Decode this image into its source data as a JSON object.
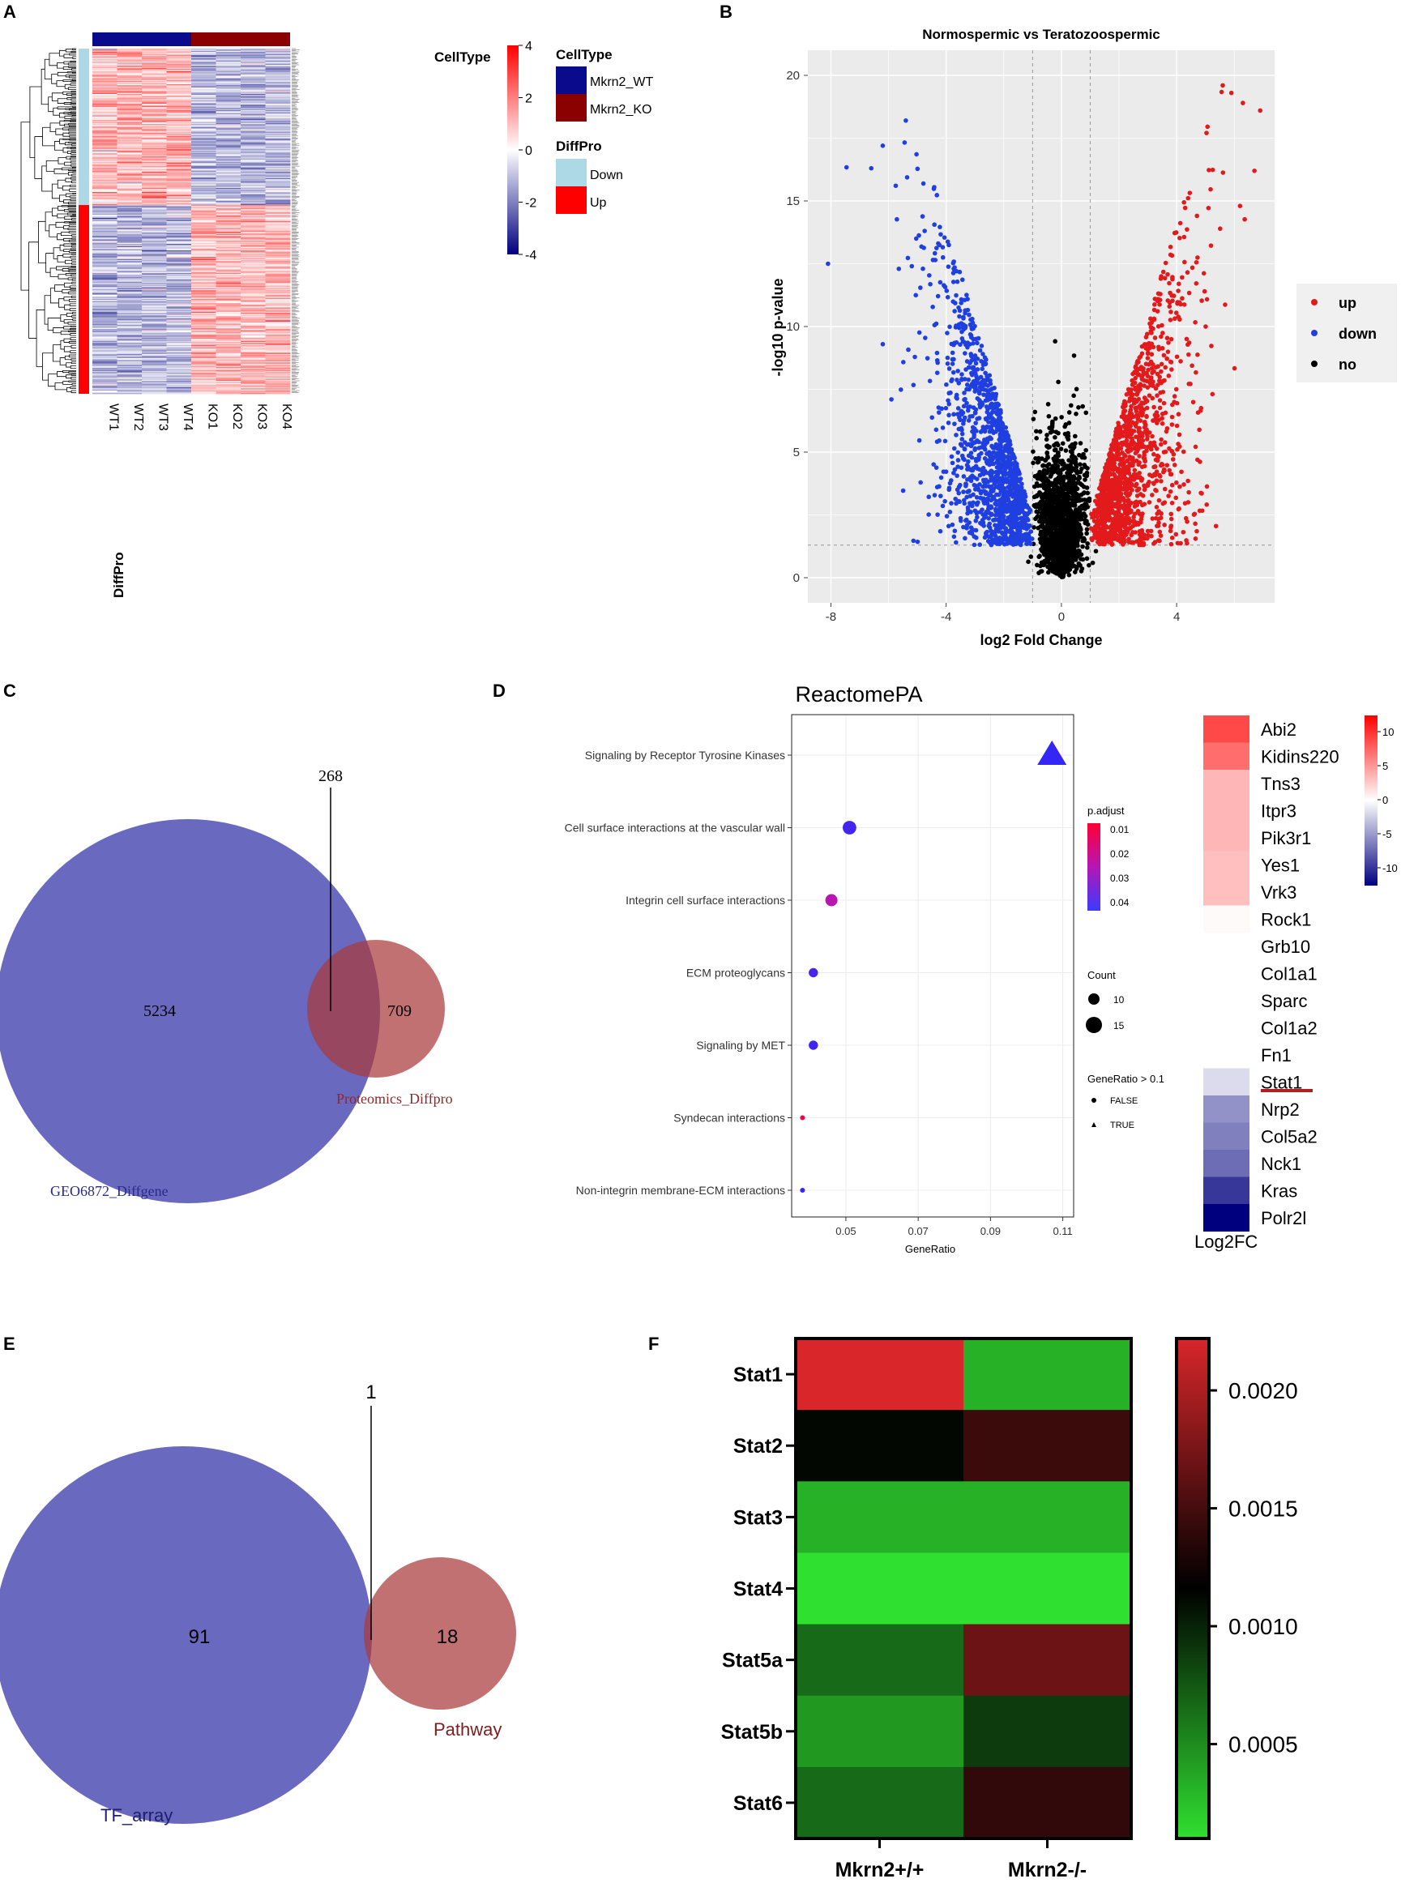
{
  "panel_labels": {
    "a": "A",
    "b": "B",
    "c": "C",
    "d": "D",
    "e": "E",
    "f": "F"
  },
  "colors": {
    "wt": "#0a0a8c",
    "ko": "#8b0000",
    "down": "#add8e6",
    "up": "#ff0000",
    "volcano_up": "#e31a1c",
    "volcano_down": "#1f3fe0",
    "volcano_no": "#000000",
    "venn_blue": "#4f4fb4",
    "venn_red": "#b54a4a"
  },
  "chart_data": [
    {
      "panel": "A",
      "type": "heatmap",
      "columns": [
        "WT1",
        "WT2",
        "WT3",
        "WT4",
        "KO1",
        "KO2",
        "KO3",
        "KO4"
      ],
      "annotation_title": "CellType",
      "row_annotation_label": "DiffPro",
      "scale": {
        "min": -4,
        "max": 4,
        "ticks": [
          "4",
          "2",
          "0",
          "-2",
          "-4"
        ]
      },
      "legend": {
        "celltype_title": "CellType",
        "celltype": [
          {
            "label": "Mkrn2_WT",
            "color": "#0a0a8c"
          },
          {
            "label": "Mkrn2_KO",
            "color": "#8b0000"
          }
        ],
        "diffpro_title": "DiffPro",
        "diffpro": [
          {
            "label": "Down",
            "color": "#add8e6"
          },
          {
            "label": "Up",
            "color": "#ff0000"
          }
        ]
      },
      "groups": [
        {
          "name": "Down",
          "rows": 145
        },
        {
          "name": "Up",
          "rows": 175
        }
      ]
    },
    {
      "panel": "B",
      "type": "scatter",
      "title": "Normospermic vs Teratozoospermic",
      "xlabel": "log2 Fold Change",
      "ylabel": "-log10 p-value",
      "xlim": [
        -8.8,
        7.4
      ],
      "ylim": [
        -1,
        21
      ],
      "xticks": [
        "-8",
        "-4",
        "0",
        "4"
      ],
      "yticks": [
        "0",
        "5",
        "10",
        "15",
        "20"
      ],
      "fc_threshold": 1,
      "p_threshold": 1.3,
      "legend": [
        {
          "label": "up",
          "color": "#e31a1c"
        },
        {
          "label": "down",
          "color": "#1f3fe0"
        },
        {
          "label": "no",
          "color": "#000000"
        }
      ]
    },
    {
      "panel": "C",
      "type": "venn",
      "sets": [
        {
          "name": "GEO6872_Diffgene",
          "only": "5234"
        },
        {
          "name": "Proteomics_Diffpro",
          "only": "709"
        }
      ],
      "intersection": "268"
    },
    {
      "panel": "D",
      "type": "dot",
      "title": "ReactomePA",
      "xlabel": "GeneRatio",
      "xticks": [
        "0.05",
        "0.07",
        "0.09",
        "0.11"
      ],
      "xlim": [
        0.035,
        0.113
      ],
      "terms": [
        {
          "term": "Signaling by Receptor Tyrosine Kinases",
          "gene_ratio": 0.107,
          "p_adjust": 0.045,
          "count": 20,
          "gt01": true
        },
        {
          "term": "Cell surface interactions at the vascular wall",
          "gene_ratio": 0.051,
          "p_adjust": 0.043,
          "count": 14,
          "gt01": false
        },
        {
          "term": "Integrin cell surface interactions",
          "gene_ratio": 0.046,
          "p_adjust": 0.025,
          "count": 13,
          "gt01": false
        },
        {
          "term": "ECM proteoglycans",
          "gene_ratio": 0.041,
          "p_adjust": 0.042,
          "count": 11,
          "gt01": false
        },
        {
          "term": "Signaling by MET",
          "gene_ratio": 0.041,
          "p_adjust": 0.043,
          "count": 11,
          "gt01": false
        },
        {
          "term": "Syndecan interactions",
          "gene_ratio": 0.038,
          "p_adjust": 0.008,
          "count": 8,
          "gt01": false
        },
        {
          "term": "Non-integrin membrane-ECM interactions",
          "gene_ratio": 0.038,
          "p_adjust": 0.045,
          "count": 8,
          "gt01": false
        }
      ],
      "padj_legend": {
        "title": "p.adjust",
        "ticks": [
          "0.01",
          "0.02",
          "0.03",
          "0.04"
        ]
      },
      "count_legend": {
        "title": "Count",
        "ticks": [
          "10",
          "15"
        ]
      },
      "shape_legend": {
        "title": "GeneRatio > 0.1",
        "items": [
          "FALSE",
          "TRUE"
        ]
      },
      "log2fc": {
        "label": "Log2FC",
        "scale_ticks": [
          "10",
          "5",
          "0",
          "-5",
          "-10"
        ],
        "genes": [
          {
            "gene": "Abi2",
            "value": 10
          },
          {
            "gene": "Kidins220",
            "value": 8
          },
          {
            "gene": "Tns3",
            "value": 4
          },
          {
            "gene": "Itpr3",
            "value": 4
          },
          {
            "gene": "Pik3r1",
            "value": 4
          },
          {
            "gene": "Yes1",
            "value": 3.5
          },
          {
            "gene": "Vrk3",
            "value": 3.5
          },
          {
            "gene": "Rock1",
            "value": 0.3
          },
          {
            "gene": "Grb10",
            "value": 0
          },
          {
            "gene": "Col1a1",
            "value": 0
          },
          {
            "gene": "Sparc",
            "value": 0
          },
          {
            "gene": "Col1a2",
            "value": 0
          },
          {
            "gene": "Fn1",
            "value": 0
          },
          {
            "gene": "Stat1",
            "value": -2
          },
          {
            "gene": "Nrp2",
            "value": -6
          },
          {
            "gene": "Col5a2",
            "value": -7
          },
          {
            "gene": "Nck1",
            "value": -8
          },
          {
            "gene": "Kras",
            "value": -11
          },
          {
            "gene": "Polr2l",
            "value": -14
          }
        ]
      }
    },
    {
      "panel": "E",
      "type": "venn",
      "sets": [
        {
          "name": "TF_array",
          "only": "91"
        },
        {
          "name": "Pathway",
          "only": "18"
        }
      ],
      "intersection": "1"
    },
    {
      "panel": "F",
      "type": "heatmap",
      "rows": [
        "Stat1",
        "Stat2",
        "Stat3",
        "Stat4",
        "Stat5a",
        "Stat5b",
        "Stat6"
      ],
      "columns": [
        "Mkrn2+/+",
        "Mkrn2-/-"
      ],
      "values": [
        [
          0.00215,
          0.0003
        ],
        [
          0.00102,
          0.00135
        ],
        [
          0.0003,
          0.0003
        ],
        [
          0.0001,
          0.0001
        ],
        [
          0.0006,
          0.0016
        ],
        [
          0.0004,
          0.0008
        ],
        [
          0.0006,
          0.0013
        ]
      ],
      "scale": {
        "min": 0.0001,
        "max": 0.00215,
        "ticks": [
          "0.0020",
          "0.0015",
          "0.0010",
          "0.0005"
        ]
      }
    }
  ]
}
